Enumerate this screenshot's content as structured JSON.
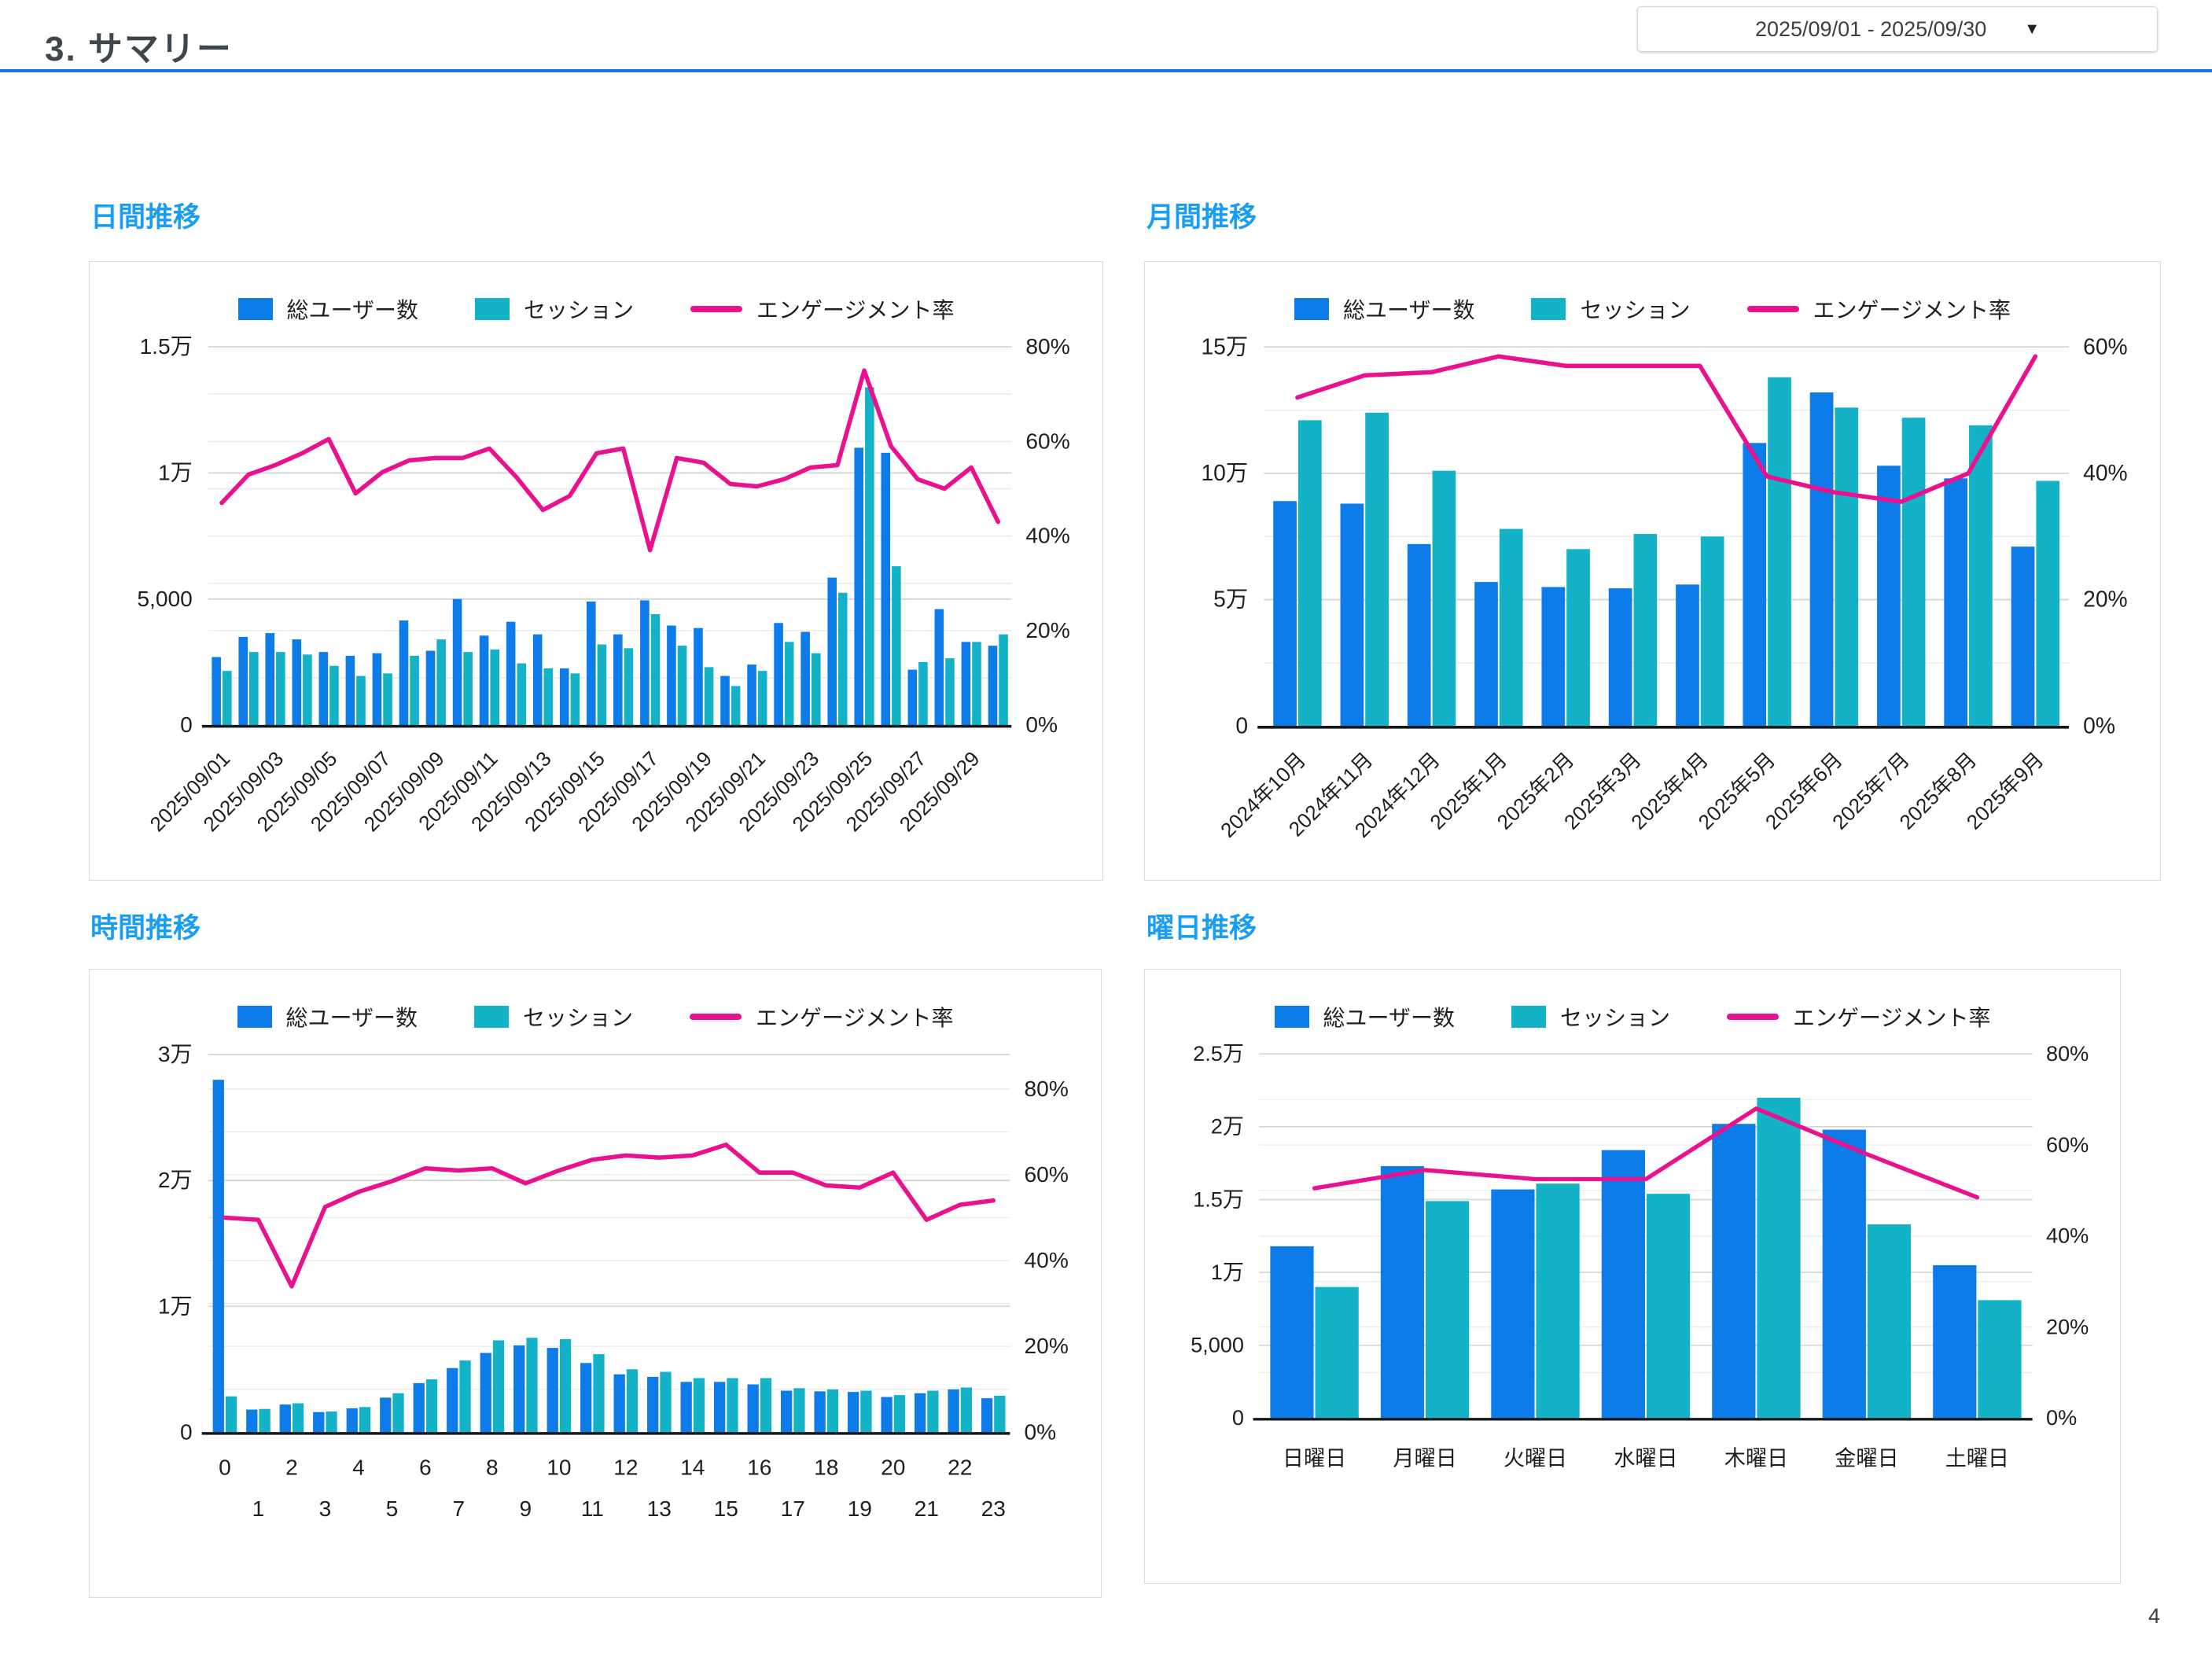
{
  "header": {
    "title": "3. サマリー",
    "date_range": "2025/09/01 - 2025/09/30"
  },
  "page_number": "4",
  "legend": {
    "users": "総ユーザー数",
    "sessions": "セッション",
    "engagement": "エンゲージメント率"
  },
  "colors": {
    "users": "#0d7ce8",
    "sessions": "#14b2c6",
    "engagement": "#ea118e",
    "section_title": "#1a9ef5",
    "divider": "#1a73e8",
    "grid_minor": "#eaeced",
    "grid_major": "#d3d6da",
    "baseline": "#15181b"
  },
  "chart_data": [
    {
      "type": "bar+line",
      "title": "日間推移",
      "label_mode": "rotate",
      "label_step": 2,
      "bar_frac": 0.74,
      "value_max": 15000,
      "pct_top": 80,
      "left_ticks": [
        {
          "v": 0,
          "label": "0"
        },
        {
          "v": 5000,
          "label": "5,000"
        },
        {
          "v": 10000,
          "label": "1万"
        },
        {
          "v": 15000,
          "label": "1.5万"
        }
      ],
      "right_ticks": [
        {
          "p": 0,
          "label": "0%"
        },
        {
          "p": 20,
          "label": "20%"
        },
        {
          "p": 40,
          "label": "40%"
        },
        {
          "p": 60,
          "label": "60%"
        },
        {
          "p": 80,
          "label": "80%"
        }
      ],
      "categories": [
        "2025/09/01",
        "2025/09/02",
        "2025/09/03",
        "2025/09/04",
        "2025/09/05",
        "2025/09/06",
        "2025/09/07",
        "2025/09/08",
        "2025/09/09",
        "2025/09/10",
        "2025/09/11",
        "2025/09/12",
        "2025/09/13",
        "2025/09/14",
        "2025/09/15",
        "2025/09/16",
        "2025/09/17",
        "2025/09/18",
        "2025/09/19",
        "2025/09/20",
        "2025/09/21",
        "2025/09/22",
        "2025/09/23",
        "2025/09/24",
        "2025/09/25",
        "2025/09/26",
        "2025/09/27",
        "2025/09/28",
        "2025/09/29",
        "2025/09/30"
      ],
      "series": [
        {
          "name": "総ユーザー数",
          "values": [
            2700,
            3500,
            3650,
            3400,
            2900,
            2750,
            2850,
            4150,
            2950,
            5000,
            3550,
            4100,
            3600,
            2250,
            4900,
            3600,
            4950,
            3950,
            3850,
            1950,
            2400,
            4050,
            3700,
            5850,
            11000,
            10800,
            2200,
            4600,
            3300,
            3150
          ]
        },
        {
          "name": "セッション",
          "values": [
            2150,
            2900,
            2900,
            2800,
            2350,
            1950,
            2050,
            2750,
            3400,
            2900,
            3000,
            2450,
            2250,
            2050,
            3200,
            3050,
            4400,
            3150,
            2300,
            1550,
            2150,
            3300,
            2850,
            5250,
            13400,
            6300,
            2500,
            2650,
            3300,
            3600
          ]
        }
      ],
      "engagement_pct": [
        47,
        53,
        55,
        57.5,
        60.5,
        49,
        53.5,
        56,
        56.5,
        56.5,
        58.5,
        52.5,
        45.5,
        48.5,
        57.5,
        58.5,
        37,
        56.5,
        55.5,
        51,
        50.5,
        52,
        54.5,
        55,
        75,
        59,
        52,
        50,
        54.5,
        43
      ]
    },
    {
      "type": "bar+line",
      "title": "月間推移",
      "label_mode": "rotate",
      "label_step": 1,
      "bar_frac": 0.72,
      "value_max": 150000,
      "pct_top": 60,
      "left_ticks": [
        {
          "v": 0,
          "label": "0"
        },
        {
          "v": 50000,
          "label": "5万"
        },
        {
          "v": 100000,
          "label": "10万"
        },
        {
          "v": 150000,
          "label": "15万"
        }
      ],
      "right_ticks": [
        {
          "p": 0,
          "label": "0%"
        },
        {
          "p": 20,
          "label": "20%"
        },
        {
          "p": 40,
          "label": "40%"
        },
        {
          "p": 60,
          "label": "60%"
        }
      ],
      "categories": [
        "2024年10月",
        "2024年11月",
        "2024年12月",
        "2025年1月",
        "2025年2月",
        "2025年3月",
        "2025年4月",
        "2025年5月",
        "2025年6月",
        "2025年7月",
        "2025年8月",
        "2025年9月"
      ],
      "series": [
        {
          "name": "総ユーザー数",
          "values": [
            89000,
            88000,
            72000,
            57000,
            55000,
            54500,
            56000,
            112000,
            132000,
            103000,
            98000,
            71000
          ]
        },
        {
          "name": "セッション",
          "values": [
            121000,
            124000,
            101000,
            78000,
            70000,
            76000,
            75000,
            138000,
            126000,
            122000,
            119000,
            97000
          ]
        }
      ],
      "engagement_pct": [
        52,
        55.5,
        56,
        58.5,
        57,
        57,
        57,
        39.5,
        37,
        35.5,
        40,
        58.5
      ]
    },
    {
      "type": "bar+line",
      "title": "時間推移",
      "label_mode": "tworow",
      "label_step": 1,
      "bar_frac": 0.72,
      "value_max": 30000,
      "pct_top": 88,
      "left_ticks": [
        {
          "v": 0,
          "label": "0"
        },
        {
          "v": 10000,
          "label": "1万"
        },
        {
          "v": 20000,
          "label": "2万"
        },
        {
          "v": 30000,
          "label": "3万"
        }
      ],
      "right_ticks": [
        {
          "p": 0,
          "label": "0%"
        },
        {
          "p": 20,
          "label": "20%"
        },
        {
          "p": 40,
          "label": "40%"
        },
        {
          "p": 60,
          "label": "60%"
        },
        {
          "p": 80,
          "label": "80%"
        }
      ],
      "categories": [
        "0",
        "1",
        "2",
        "3",
        "4",
        "5",
        "6",
        "7",
        "8",
        "9",
        "10",
        "11",
        "12",
        "13",
        "14",
        "15",
        "16",
        "17",
        "18",
        "19",
        "20",
        "21",
        "22",
        "23"
      ],
      "series": [
        {
          "name": "総ユーザー数",
          "values": [
            28000,
            1800,
            2200,
            1600,
            1900,
            2750,
            3900,
            5100,
            6300,
            6900,
            6700,
            5500,
            4600,
            4400,
            4000,
            4000,
            3800,
            3300,
            3250,
            3200,
            2800,
            3100,
            3400,
            2700
          ]
        },
        {
          "name": "セッション",
          "values": [
            2850,
            1850,
            2300,
            1650,
            2000,
            3100,
            4200,
            5700,
            7300,
            7500,
            7400,
            6200,
            5000,
            4800,
            4300,
            4300,
            4300,
            3500,
            3400,
            3300,
            2950,
            3300,
            3550,
            2900
          ]
        }
      ],
      "engagement_pct": [
        50,
        49.5,
        34,
        52.5,
        56,
        58.5,
        61.5,
        61,
        61.5,
        58,
        61,
        63.5,
        64.5,
        64,
        64.5,
        67,
        60.5,
        60.5,
        57.5,
        57,
        60.5,
        49.5,
        53,
        54
      ]
    },
    {
      "type": "bar+line",
      "title": "曜日推移",
      "label_mode": "plain",
      "label_step": 1,
      "bar_frac": 0.8,
      "value_max": 25000,
      "pct_top": 80,
      "left_ticks": [
        {
          "v": 0,
          "label": "0"
        },
        {
          "v": 5000,
          "label": "5,000"
        },
        {
          "v": 10000,
          "label": "1万"
        },
        {
          "v": 15000,
          "label": "1.5万"
        },
        {
          "v": 20000,
          "label": "2万"
        },
        {
          "v": 25000,
          "label": "2.5万"
        }
      ],
      "right_ticks": [
        {
          "p": 0,
          "label": "0%"
        },
        {
          "p": 20,
          "label": "20%"
        },
        {
          "p": 40,
          "label": "40%"
        },
        {
          "p": 60,
          "label": "60%"
        },
        {
          "p": 80,
          "label": "80%"
        }
      ],
      "categories": [
        "日曜日",
        "月曜日",
        "火曜日",
        "水曜日",
        "木曜日",
        "金曜日",
        "土曜日"
      ],
      "series": [
        {
          "name": "総ユーザー数",
          "values": [
            11800,
            17300,
            15700,
            18400,
            20200,
            19800,
            10500
          ]
        },
        {
          "name": "セッション",
          "values": [
            9000,
            14900,
            16100,
            15400,
            22000,
            13300,
            8100
          ]
        }
      ],
      "engagement_pct": [
        50.5,
        54.5,
        52.5,
        52.5,
        68,
        58,
        48.5
      ]
    }
  ]
}
